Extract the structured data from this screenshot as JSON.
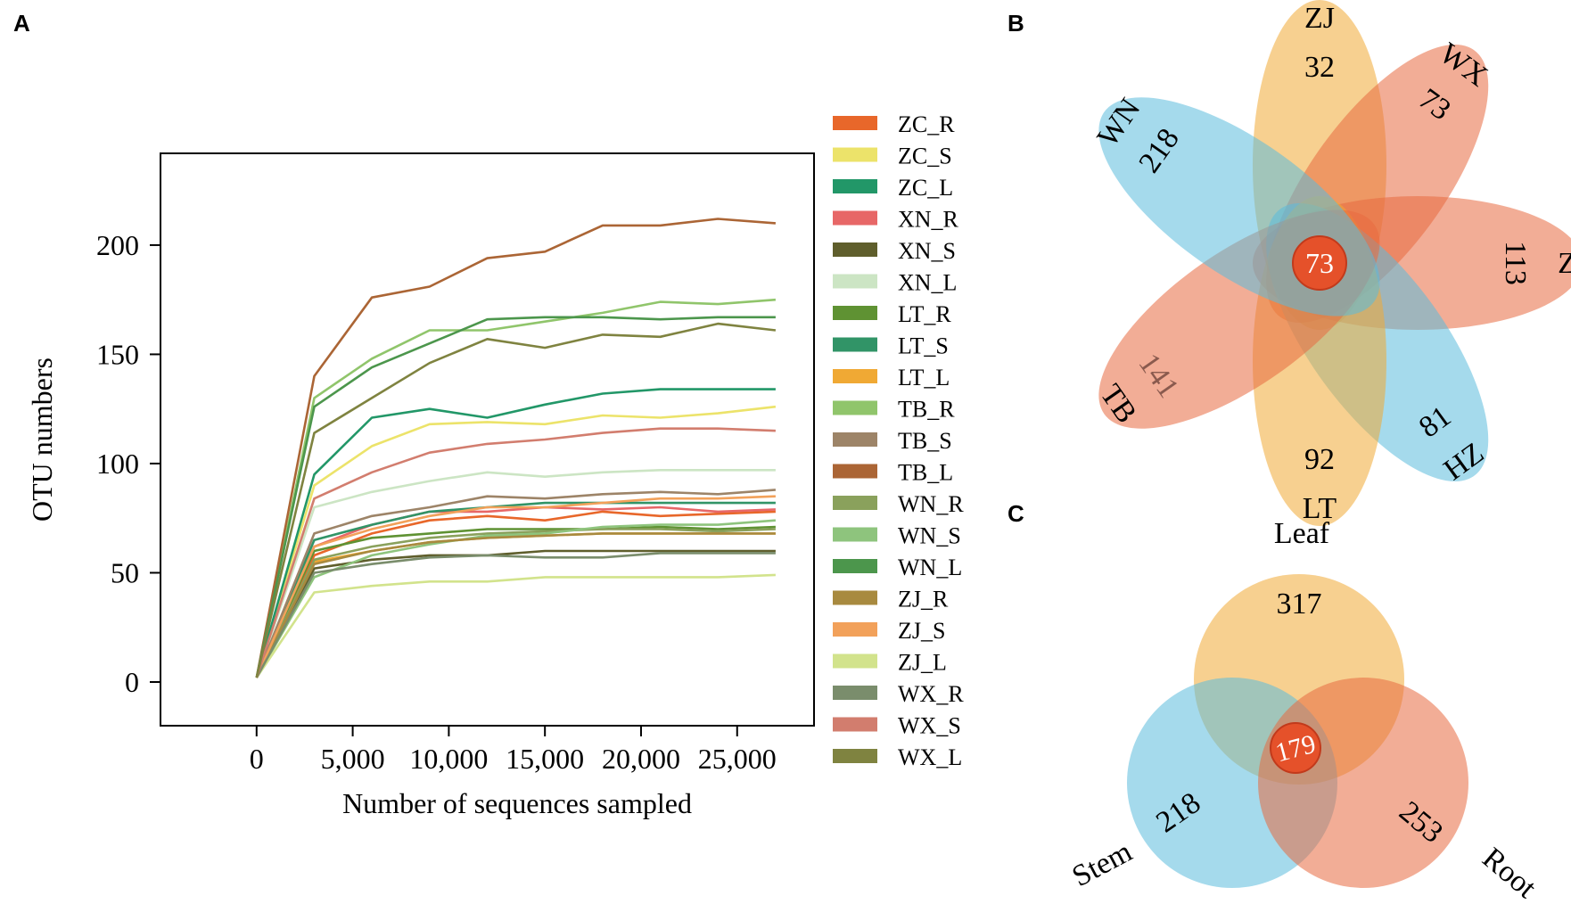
{
  "panels": {
    "a": "A",
    "b": "B",
    "c": "C"
  },
  "chart_data": [
    {
      "type": "line",
      "xlabel": "Number of sequences sampled",
      "ylabel": "OTU numbers",
      "xlim": [
        -5000,
        29000
      ],
      "ylim": [
        -20,
        242
      ],
      "x_ticks": [
        {
          "value": 0,
          "label": "0"
        },
        {
          "value": 5000,
          "label": "5,000"
        },
        {
          "value": 10000,
          "label": "10,000"
        },
        {
          "value": 15000,
          "label": "15,000"
        },
        {
          "value": 20000,
          "label": "20,000"
        },
        {
          "value": 25000,
          "label": "25,000"
        }
      ],
      "y_ticks": [
        {
          "value": 0,
          "label": "0"
        },
        {
          "value": 50,
          "label": "50"
        },
        {
          "value": 100,
          "label": "100"
        },
        {
          "value": 150,
          "label": "150"
        },
        {
          "value": 200,
          "label": "200"
        }
      ],
      "x": [
        0,
        3000,
        6000,
        9000,
        12000,
        15000,
        18000,
        21000,
        24000,
        27000
      ],
      "series": [
        {
          "name": "ZC_R",
          "color": "#e8672a",
          "values": [
            2,
            58,
            68,
            74,
            76,
            74,
            78,
            76,
            77,
            78
          ]
        },
        {
          "name": "ZC_S",
          "color": "#ece36a",
          "values": [
            2,
            90,
            108,
            118,
            119,
            118,
            122,
            121,
            123,
            126
          ]
        },
        {
          "name": "ZC_L",
          "color": "#229768",
          "values": [
            2,
            95,
            121,
            125,
            121,
            127,
            132,
            134,
            134,
            134
          ]
        },
        {
          "name": "XN_R",
          "color": "#e76767",
          "values": [
            2,
            62,
            72,
            78,
            78,
            80,
            79,
            80,
            78,
            79
          ]
        },
        {
          "name": "XN_S",
          "color": "#5f5e2c",
          "values": [
            2,
            52,
            56,
            58,
            58,
            60,
            60,
            60,
            60,
            60
          ]
        },
        {
          "name": "XN_L",
          "color": "#cce5c4",
          "values": [
            2,
            80,
            87,
            92,
            96,
            94,
            96,
            97,
            97,
            97
          ]
        },
        {
          "name": "LT_R",
          "color": "#5f9233",
          "values": [
            2,
            60,
            66,
            68,
            70,
            70,
            70,
            71,
            70,
            71
          ]
        },
        {
          "name": "LT_S",
          "color": "#319467",
          "values": [
            2,
            65,
            72,
            78,
            80,
            82,
            82,
            82,
            82,
            82
          ]
        },
        {
          "name": "LT_L",
          "color": "#f0a934",
          "values": [
            2,
            55,
            60,
            64,
            66,
            67,
            68,
            68,
            68,
            68
          ]
        },
        {
          "name": "TB_R",
          "color": "#90c56b",
          "values": [
            2,
            130,
            148,
            161,
            161,
            165,
            169,
            174,
            173,
            175
          ]
        },
        {
          "name": "TB_S",
          "color": "#9d8468",
          "values": [
            2,
            68,
            76,
            80,
            85,
            84,
            86,
            87,
            86,
            88
          ]
        },
        {
          "name": "TB_L",
          "color": "#ab6535",
          "values": [
            2,
            140,
            176,
            181,
            194,
            197,
            209,
            209,
            212,
            210
          ]
        },
        {
          "name": "WN_R",
          "color": "#8aa15c",
          "values": [
            2,
            56,
            62,
            66,
            68,
            69,
            70,
            70,
            69,
            70
          ]
        },
        {
          "name": "WN_S",
          "color": "#8ec47d",
          "values": [
            2,
            48,
            58,
            63,
            67,
            68,
            71,
            72,
            72,
            74
          ]
        },
        {
          "name": "WN_L",
          "color": "#4c964c",
          "values": [
            2,
            126,
            144,
            155,
            166,
            167,
            167,
            166,
            167,
            167
          ]
        },
        {
          "name": "ZJ_R",
          "color": "#a88a3f",
          "values": [
            2,
            54,
            60,
            64,
            66,
            67,
            68,
            68,
            68,
            68
          ]
        },
        {
          "name": "ZJ_S",
          "color": "#f2a15a",
          "values": [
            2,
            62,
            70,
            76,
            80,
            80,
            82,
            84,
            84,
            85
          ]
        },
        {
          "name": "ZJ_L",
          "color": "#d2e38c",
          "values": [
            2,
            41,
            44,
            46,
            46,
            48,
            48,
            48,
            48,
            49
          ]
        },
        {
          "name": "WX_R",
          "color": "#7a8d6c",
          "values": [
            2,
            50,
            54,
            57,
            58,
            57,
            57,
            59,
            59,
            59
          ]
        },
        {
          "name": "WX_S",
          "color": "#d27d6e",
          "values": [
            2,
            84,
            96,
            105,
            109,
            111,
            114,
            116,
            116,
            115
          ]
        },
        {
          "name": "WX_L",
          "color": "#7f8340",
          "values": [
            2,
            114,
            130,
            146,
            157,
            153,
            159,
            158,
            164,
            161
          ]
        }
      ]
    },
    {
      "type": "venn",
      "sets": [
        {
          "name": "ZJ",
          "unique": "32",
          "color": "#f0a934",
          "orientation_deg": 0
        },
        {
          "name": "WX",
          "unique": "73",
          "color": "#e8693f",
          "orientation_deg": 36
        },
        {
          "name": "ZC",
          "unique": "113",
          "color": "#e8693f",
          "orientation_deg": 90
        },
        {
          "name": "HZ",
          "unique": "81",
          "color": "#5bbcdc",
          "orientation_deg": 144
        },
        {
          "name": "LT",
          "unique": "92",
          "color": "#f0a934",
          "orientation_deg": 180
        },
        {
          "name": "TB",
          "unique": "141",
          "color": "#e8693f",
          "orientation_deg": 235
        },
        {
          "name": "WN",
          "unique": "218",
          "color": "#5bbcdc",
          "orientation_deg": 305
        }
      ],
      "core": "73"
    },
    {
      "type": "venn",
      "sets": [
        {
          "name": "Leaf",
          "unique": "317",
          "color": "#f0a934"
        },
        {
          "name": "Stem",
          "unique": "218",
          "color": "#5bbcdc"
        },
        {
          "name": "Root",
          "unique": "253",
          "color": "#e8693f"
        }
      ],
      "core": "179"
    }
  ]
}
